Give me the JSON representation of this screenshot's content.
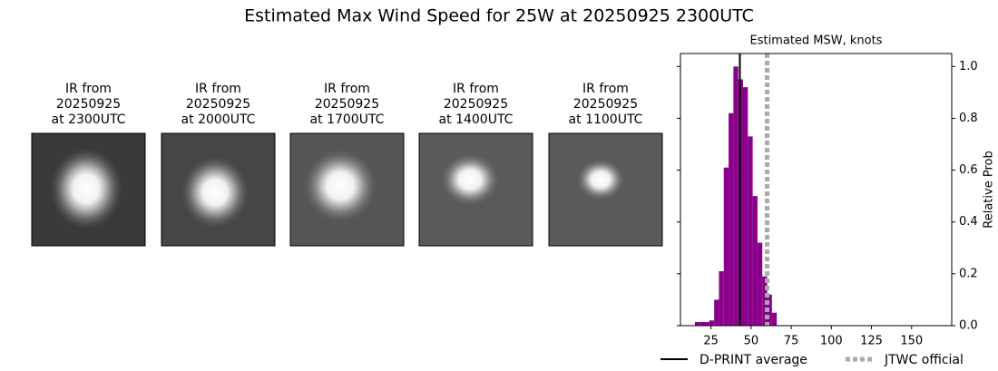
{
  "title": "Estimated Max Wind Speed for 25W at 20250925 2300UTC",
  "panels": [
    {
      "lines": [
        "IR from",
        "20250925",
        "at 2300UTC"
      ]
    },
    {
      "lines": [
        "IR from",
        "20250925",
        "at 2000UTC"
      ]
    },
    {
      "lines": [
        "IR from",
        "20250925",
        "at 1700UTC"
      ]
    },
    {
      "lines": [
        "IR from",
        "20250925",
        "at 1400UTC"
      ]
    },
    {
      "lines": [
        "IR from",
        "20250925",
        "at 1100UTC"
      ]
    }
  ],
  "chart_data": {
    "type": "histogram",
    "title": "Estimated MSW, knots",
    "y_label": "Relative Prob",
    "bins": [
      15,
      18,
      21,
      24,
      27,
      30,
      33,
      36,
      39,
      42,
      45,
      48,
      51,
      54,
      57,
      60,
      63,
      66
    ],
    "values": [
      0.014,
      0.014,
      0.014,
      0.02,
      0.1,
      0.21,
      0.61,
      0.82,
      1.0,
      0.95,
      0.92,
      0.73,
      0.5,
      0.32,
      0.19,
      0.12,
      0.05
    ],
    "color": "#8b008b",
    "xlim": [
      6,
      175
    ],
    "xticks": [
      25,
      50,
      75,
      100,
      125,
      150
    ],
    "ylim": [
      0,
      1.05
    ],
    "yticks": [
      {
        "value": 0,
        "label": "0.0"
      },
      {
        "value": 0.2,
        "label": "0.2"
      },
      {
        "value": 0.4,
        "label": "0.4"
      },
      {
        "value": 0.6,
        "label": "0.6"
      },
      {
        "value": 0.8,
        "label": "0.8"
      },
      {
        "value": 1,
        "label": "1.0"
      }
    ],
    "lines": [
      {
        "name": "D-PRINT average",
        "value": 43,
        "color": "#000000",
        "style": "solid"
      },
      {
        "name": "JTWC official",
        "value": 60,
        "color": "#aaaaaa",
        "style": "dotted"
      }
    ]
  }
}
